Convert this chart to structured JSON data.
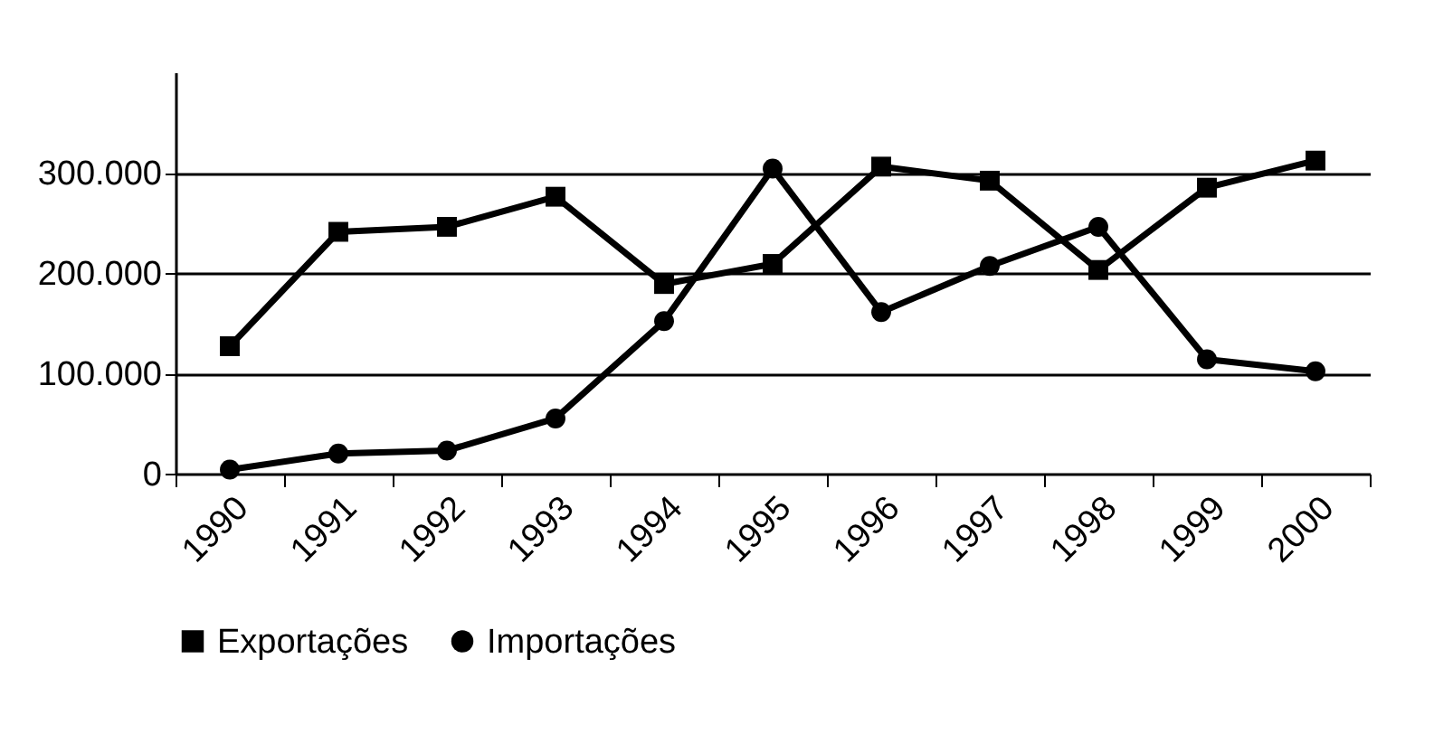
{
  "chart_data": {
    "type": "line",
    "categories": [
      "1990",
      "1991",
      "1992",
      "1993",
      "1994",
      "1995",
      "1996",
      "1997",
      "1998",
      "1999",
      "2000"
    ],
    "series": [
      {
        "name": "Exportações",
        "color": "#000000",
        "marker": "square",
        "values": [
          127000,
          241000,
          246000,
          276000,
          189000,
          209000,
          306000,
          292000,
          203000,
          285000,
          312000
        ]
      },
      {
        "name": "Importações",
        "color": "#000000",
        "marker": "circle",
        "values": [
          4000,
          20000,
          23000,
          55000,
          152000,
          304000,
          161000,
          207000,
          246000,
          114000,
          102000
        ]
      }
    ],
    "ylim": [
      0,
      400000
    ],
    "yticks": [
      0,
      {
        "value": 100000,
        "label": "100.000"
      },
      {
        "value": 200000,
        "label": "200.000"
      },
      {
        "value": 300000,
        "label": "300.000"
      }
    ],
    "grid": "y",
    "legend": "bottom",
    "line_style": "solid"
  }
}
